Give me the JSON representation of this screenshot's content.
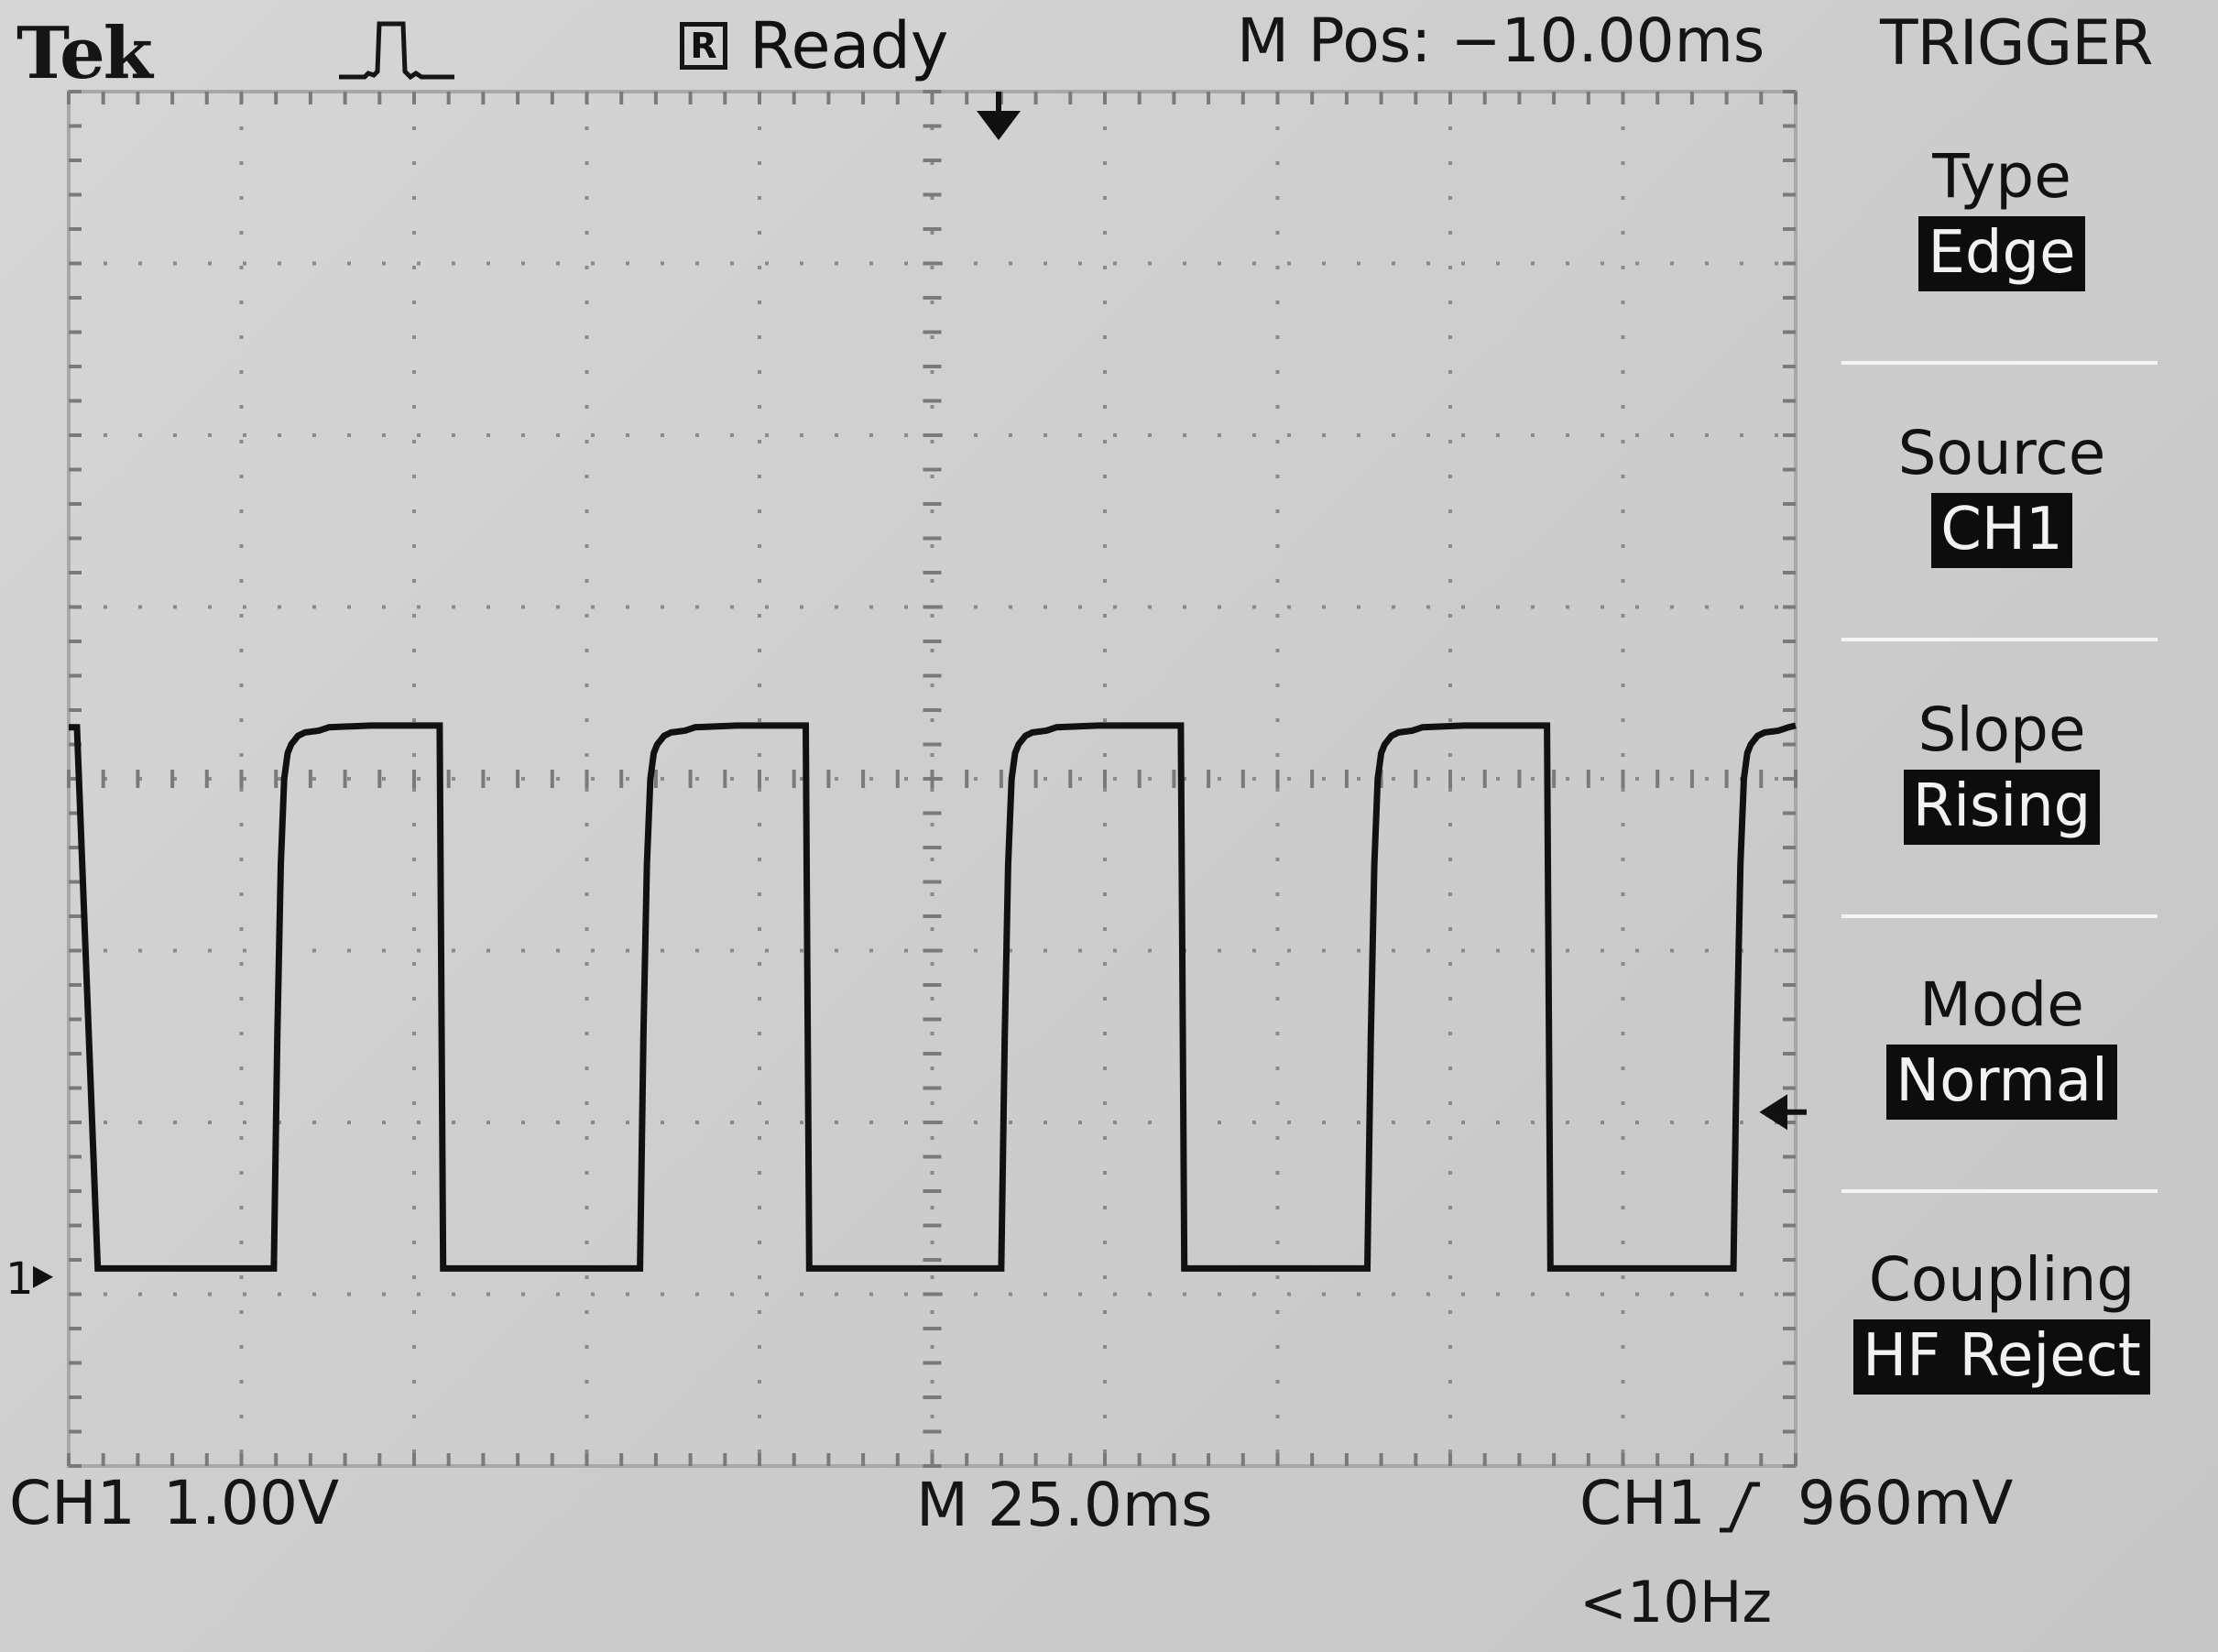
{
  "header": {
    "brand": "Tek",
    "acquisition_icon": "single-pulse-icon",
    "run_state_badge": "R",
    "run_state": "Ready",
    "main_position": "M Pos: −10.00ms"
  },
  "menu": {
    "title": "TRIGGER",
    "items": [
      {
        "label": "Type",
        "value": "Edge"
      },
      {
        "label": "Source",
        "value": "CH1"
      },
      {
        "label": "Slope",
        "value": "Rising"
      },
      {
        "label": "Mode",
        "value": "Normal"
      },
      {
        "label": "Coupling",
        "value": "HF Reject"
      }
    ]
  },
  "footer": {
    "channel": "CH1",
    "channel_scale": "1.00V",
    "timebase": "M 25.0ms",
    "trigger_source": "CH1",
    "trigger_slope_icon": "rising-edge-icon",
    "trigger_level": "960mV",
    "trigger_frequency": "<10Hz"
  },
  "markers": {
    "channel_ground_label": "1"
  },
  "colors": {
    "background": "#cfcfcf",
    "trace": "#111111",
    "menu_value_bg": "#0d0d0d",
    "menu_value_fg": "#f2f2f2"
  },
  "chart_data": {
    "type": "line",
    "x_unit": "ms",
    "y_unit": "V",
    "x_divisions": 10,
    "y_divisions": 8,
    "time_per_division_ms": 25.0,
    "volts_per_division": 1.0,
    "xlim": [
      -135,
      115
    ],
    "ylim": [
      -1.1,
      6.9
    ],
    "trigger_level_v": 0.96,
    "series": [
      {
        "x": [
          -135,
          -133.8,
          -130.8,
          -105.3,
          -104.8,
          -104.3,
          -103.8,
          -103.3,
          -102.8,
          -101.8,
          -100.8,
          -98.8,
          -97.3,
          -91.3,
          -81.3,
          -80.8,
          -77.8,
          -52.3,
          -51.8,
          -51.3,
          -50.8,
          -50.3,
          -49.8,
          -48.8,
          -47.8,
          -45.8,
          -44.3,
          -38.3,
          -28.3,
          -27.8,
          -24.8,
          0,
          0.5,
          1,
          1.5,
          2,
          2.5,
          3.5,
          4.5,
          6.5,
          8,
          14,
          26,
          26.5,
          29.5,
          53,
          53.5,
          54,
          54.5,
          55,
          55.5,
          56.5,
          57.5,
          59.5,
          61,
          67,
          79,
          79.5,
          82.5,
          106,
          106.5,
          107,
          107.5,
          108,
          108.5,
          109.5,
          110.5,
          112.5,
          114,
          115
        ],
        "y": [
          3.2,
          3.2,
          0.05,
          0.05,
          1.4,
          2.4,
          2.9,
          3.05,
          3.1,
          3.15,
          3.17,
          3.18,
          3.2,
          3.21,
          3.21,
          0.05,
          0.05,
          0.05,
          1.4,
          2.4,
          2.9,
          3.05,
          3.1,
          3.15,
          3.17,
          3.18,
          3.2,
          3.21,
          3.21,
          0.05,
          0.05,
          0.05,
          1.4,
          2.4,
          2.9,
          3.05,
          3.1,
          3.15,
          3.17,
          3.18,
          3.2,
          3.21,
          3.21,
          0.05,
          0.05,
          0.05,
          1.4,
          2.4,
          2.9,
          3.05,
          3.1,
          3.15,
          3.17,
          3.18,
          3.2,
          3.21,
          3.21,
          0.05,
          0.05,
          0.05,
          1.4,
          2.4,
          2.9,
          3.05,
          3.1,
          3.15,
          3.17,
          3.18,
          3.2,
          3.21
        ]
      }
    ]
  }
}
